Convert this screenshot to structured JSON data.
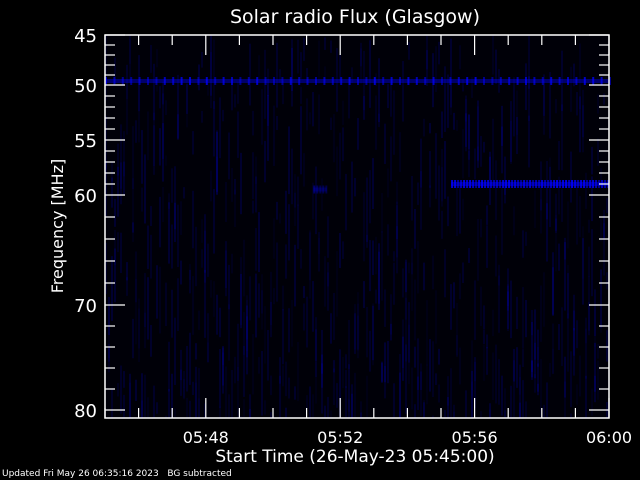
{
  "chart_data": {
    "type": "heatmap",
    "title": "Solar radio Flux (Glasgow)",
    "xlabel": "Start Time (26-May-23 05:45:00)",
    "ylabel": "Frequency [MHz]",
    "x_range": [
      "05:45",
      "06:00"
    ],
    "y_range": [
      45,
      80
    ],
    "y_inverted": true,
    "x_ticks": [
      "05:48",
      "05:52",
      "05:56",
      "06:00"
    ],
    "y_ticks": [
      "45",
      "50",
      "55",
      "60",
      "70",
      "80"
    ],
    "colormap": {
      "low": "#000000",
      "high": "#0000ff"
    },
    "features": [
      {
        "label": "",
        "freq_mhz": 49.6,
        "start": "05:45",
        "end": "06:00",
        "intensity": 0.8
      },
      {
        "label": "",
        "freq_mhz": 59.0,
        "start": "05:55.3",
        "end": "06:00",
        "intensity": 0.9
      },
      {
        "label": "",
        "freq_mhz": 59.5,
        "start": "05:51.2",
        "end": "05:51.6",
        "intensity": 0.4
      }
    ]
  },
  "footer": {
    "updated": "Updated Fri May 26 06:35:16 2023",
    "note": "BG subtracted"
  }
}
